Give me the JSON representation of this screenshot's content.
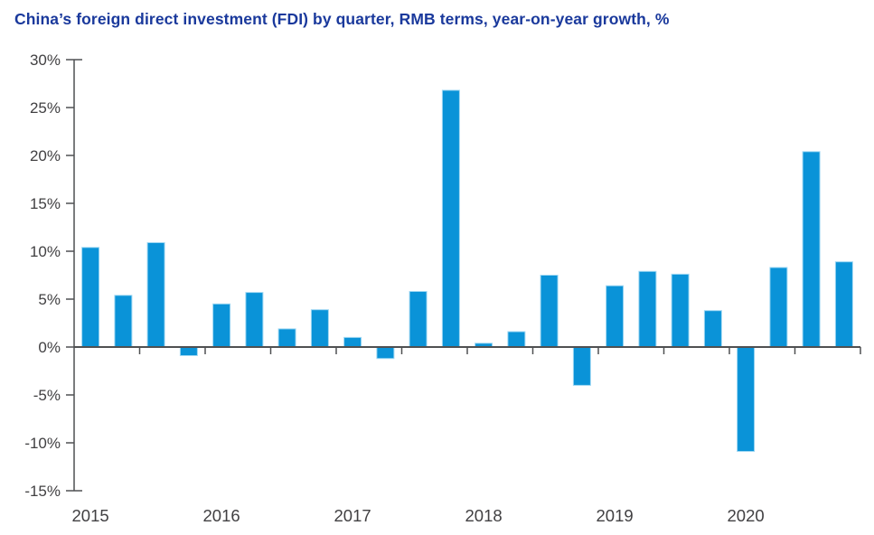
{
  "title": "China’s foreign direct investment (FDI) by quarter, RMB terms, year-on-year growth, %",
  "colors": {
    "bar": "#0a93d8",
    "bar_edge": "#9ed7f3",
    "title": "#1a399c",
    "axis": "#4f5052",
    "text": "#414042"
  },
  "chart_data": {
    "type": "bar",
    "title": "China’s foreign direct investment (FDI) by quarter, RMB terms, year-on-year growth, %",
    "xlabel": "",
    "ylabel": "year-on-year growth, %",
    "ylim": [
      -15,
      30
    ],
    "ytick_step": 5,
    "grid": false,
    "legend": false,
    "years": [
      "2015",
      "2016",
      "2017",
      "2018",
      "2019",
      "2020"
    ],
    "categories": [
      "2015 Q1",
      "2015 Q2",
      "2015 Q3",
      "2015 Q4",
      "2016 Q1",
      "2016 Q2",
      "2016 Q3",
      "2016 Q4",
      "2017 Q1",
      "2017 Q2",
      "2017 Q3",
      "2017 Q4",
      "2018 Q1",
      "2018 Q2",
      "2018 Q3",
      "2018 Q4",
      "2019 Q1",
      "2019 Q2",
      "2019 Q3",
      "2019 Q4",
      "2020 Q1",
      "2020 Q2",
      "2020 Q3",
      "2020 Q4"
    ],
    "values": [
      10.4,
      5.4,
      10.9,
      -0.9,
      4.5,
      5.7,
      1.9,
      3.9,
      1.0,
      -1.2,
      5.8,
      26.8,
      0.4,
      1.6,
      7.5,
      -4.0,
      6.4,
      7.9,
      7.6,
      3.8,
      -10.9,
      8.3,
      20.4,
      8.9
    ],
    "yticks": [
      {
        "value": 30,
        "label": "30%"
      },
      {
        "value": 25,
        "label": "25%"
      },
      {
        "value": 20,
        "label": "20%"
      },
      {
        "value": 15,
        "label": "15%"
      },
      {
        "value": 10,
        "label": "10%"
      },
      {
        "value": 5,
        "label": "5%"
      },
      {
        "value": 0,
        "label": "0%"
      },
      {
        "value": -5,
        "label": "-5%"
      },
      {
        "value": -10,
        "label": "-10%"
      },
      {
        "value": -15,
        "label": "-15%"
      }
    ]
  }
}
